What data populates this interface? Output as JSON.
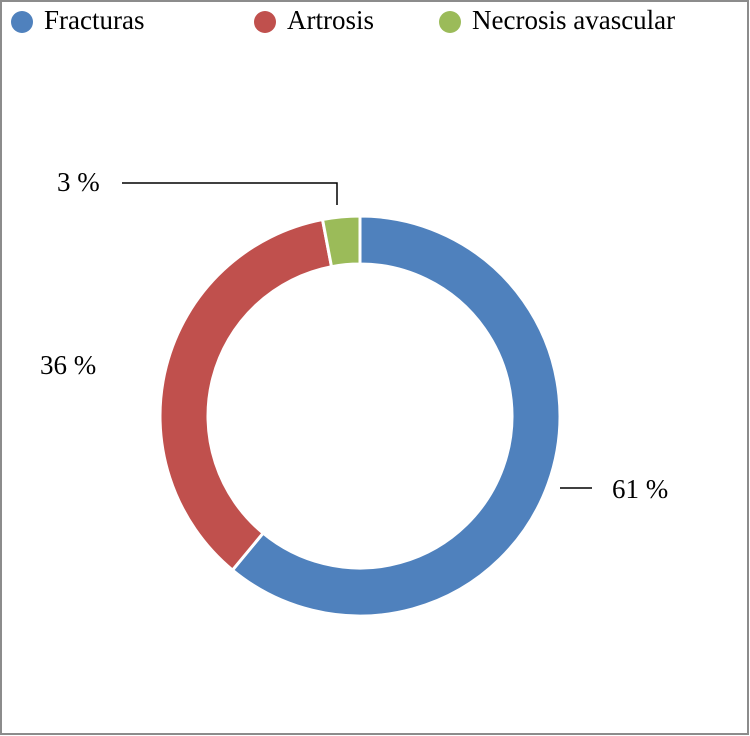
{
  "chart_data": {
    "type": "donut",
    "categories": [
      "Fracturas",
      "Artrosis",
      "Necrosis avascular"
    ],
    "values": [
      61,
      36,
      3
    ],
    "value_labels": [
      "61 %",
      "36 %",
      "3 %"
    ],
    "colors": [
      "#4f81bd",
      "#c0504d",
      "#9bbb59"
    ],
    "legend": "top"
  }
}
